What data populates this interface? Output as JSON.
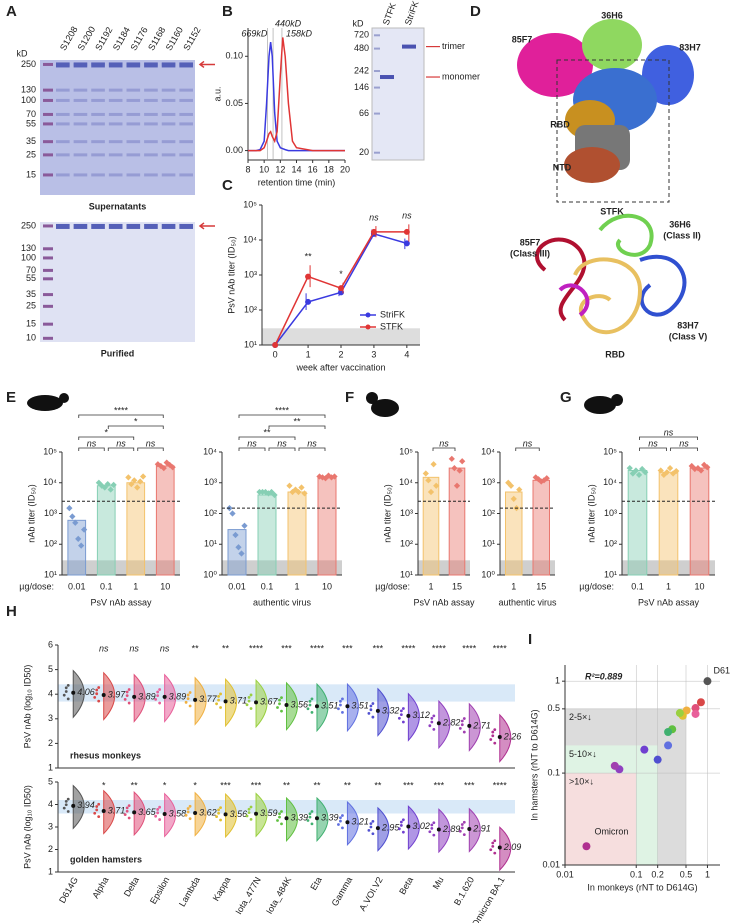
{
  "panel_labels": [
    "A",
    "B",
    "C",
    "D",
    "E",
    "F",
    "G",
    "H",
    "I"
  ],
  "gel_A": {
    "unit": "kD",
    "lanes": [
      "S1208",
      "S1200",
      "S1192",
      "S1184",
      "S1176",
      "S1168",
      "S1160",
      "S1152"
    ],
    "lane_colors": [
      "#222",
      "#222",
      "#d63a3a",
      "#222",
      "#222",
      "#222",
      "#222",
      "#222"
    ],
    "top": {
      "markers": [
        250,
        130,
        100,
        70,
        55,
        35,
        25,
        15
      ],
      "caption": "Supernatants"
    },
    "bottom": {
      "markers": [
        250,
        130,
        100,
        70,
        55,
        35,
        25,
        15,
        10
      ],
      "caption": "Purified"
    }
  },
  "structure_D": {
    "cryo_em_labels": [
      "85F7",
      "36H6",
      "83H7",
      "RBD",
      "NTD",
      "STFK"
    ],
    "ribbon_labels": [
      "85F7",
      "(Class III)",
      "36H6",
      "(Class II)",
      "83H7",
      "(Class V)",
      "RBD"
    ]
  },
  "chart_data": [
    {
      "type": "line",
      "ylabel": "a.u.",
      "xlabel": "retention time (min)",
      "x": [
        8,
        9,
        9.5,
        10,
        10.3,
        10.6,
        10.8,
        11,
        11.3,
        11.6,
        12,
        12.3,
        12.6,
        13,
        13.5,
        14,
        16,
        18,
        20
      ],
      "xlim": [
        8,
        20
      ],
      "xticks": [
        8,
        10,
        12,
        14,
        16,
        18,
        20
      ],
      "ylim": [
        -0.01,
        0.13
      ],
      "yticks": [
        {
          "value": 0,
          "label": "0.00"
        },
        {
          "value": 0.05,
          "label": "0.05"
        },
        {
          "value": 0.1,
          "label": "0.10"
        }
      ],
      "series": [
        {
          "name": "StriFK",
          "color": "#3a3ae0",
          "values": [
            0,
            0,
            0.001,
            0.01,
            0.05,
            0.1,
            0.115,
            0.1,
            0.04,
            0.01,
            0.003,
            0.002,
            0.001,
            0,
            0,
            0,
            0,
            0,
            0
          ]
        },
        {
          "name": "STFK",
          "color": "#e03535",
          "values": [
            0,
            0,
            0,
            0.003,
            0.01,
            0.018,
            0.02,
            0.015,
            0.01,
            0.02,
            0.08,
            0.12,
            0.1,
            0.05,
            0.01,
            0.003,
            0,
            0,
            0
          ]
        }
      ],
      "markers": [
        {
          "label": "669kD",
          "x": 10.4
        },
        {
          "label": "440kD",
          "x": 11.1
        },
        {
          "label": "158kD",
          "x": 12.2
        }
      ],
      "inset_gel": {
        "unit": "kD",
        "markers": [
          720,
          480,
          242,
          146,
          66,
          20
        ],
        "annotations": [
          "trimer",
          "monomer"
        ]
      }
    },
    {
      "type": "line",
      "log_y": true,
      "ylabel": "PsV nAb titer (ID₅₀)",
      "xlabel": "week after vaccination",
      "x": [
        0,
        1,
        2,
        3,
        4
      ],
      "xlim": [
        -0.4,
        4.4
      ],
      "xticks": [
        0,
        1,
        2,
        3,
        4
      ],
      "ylim": [
        10,
        100000
      ],
      "yticks": [
        {
          "value": 10,
          "label": "10¹"
        },
        {
          "value": 100,
          "label": "10²"
        },
        {
          "value": 1000,
          "label": "10³"
        },
        {
          "value": 10000,
          "label": "10⁴"
        },
        {
          "value": 100000,
          "label": "10⁵"
        }
      ],
      "lod": 30,
      "series": [
        {
          "name": "StriFK",
          "color": "#3a3ae0",
          "values": [
            10,
            170,
            320,
            15000,
            8000
          ],
          "error_low": [
            10,
            100,
            250,
            11000,
            5500
          ],
          "error_high": [
            10,
            300,
            420,
            20000,
            11000
          ]
        },
        {
          "name": "STFK",
          "color": "#e03535",
          "values": [
            10,
            900,
            420,
            17000,
            17000
          ],
          "error_low": [
            10,
            450,
            300,
            12000,
            9000
          ],
          "error_high": [
            10,
            1900,
            600,
            25000,
            28000
          ]
        }
      ],
      "annotations": [
        null,
        "**",
        "*",
        "ns",
        "ns"
      ],
      "legend": "lower right"
    },
    {
      "type": "bar",
      "log_y": true,
      "ylabel": "nAb titer (ID₅₀)",
      "xlabel": "PsV nAb assay",
      "category_title": "µg/dose:",
      "categories": [
        "0.01",
        "0.1",
        "1",
        "10"
      ],
      "values": [
        600,
        8000,
        10000,
        35000
      ],
      "colors": [
        "#7a9bd1",
        "#86cfb4",
        "#f3c26b",
        "#e9776f"
      ],
      "points": [
        [
          1500,
          800,
          500,
          150,
          90,
          300
        ],
        [
          10000,
          8000,
          7000,
          9000,
          6000,
          8500
        ],
        [
          15000,
          9000,
          12000,
          7000,
          11000,
          16000
        ],
        [
          40000,
          35000,
          30000,
          45000,
          38000,
          32000
        ]
      ],
      "ylim": [
        10,
        100000
      ],
      "yticks": [
        {
          "value": 10,
          "label": "10¹"
        },
        {
          "value": 100,
          "label": "10²"
        },
        {
          "value": 1000,
          "label": "10³"
        },
        {
          "value": 10000,
          "label": "10⁴"
        },
        {
          "value": 100000,
          "label": "10⁵"
        }
      ],
      "lod": 30,
      "threshold": 2500,
      "brackets": [
        {
          "between": [
            "0.01",
            "0.1"
          ],
          "label": "ns"
        },
        {
          "between": [
            "0.1",
            "1"
          ],
          "label": "ns"
        },
        {
          "between": [
            "1",
            "10"
          ],
          "label": "ns"
        },
        {
          "between": [
            "0.01",
            "1"
          ],
          "label": "*"
        },
        {
          "between": [
            "0.1",
            "10"
          ],
          "label": "*"
        },
        {
          "between": [
            "0.01",
            "10"
          ],
          "label": "****"
        }
      ]
    },
    {
      "type": "bar",
      "log_y": true,
      "xlabel": "authentic virus",
      "categories": [
        "0.01",
        "0.1",
        "1",
        "10"
      ],
      "values": [
        30,
        400,
        500,
        1500
      ],
      "colors": [
        "#7a9bd1",
        "#86cfb4",
        "#f3c26b",
        "#e9776f"
      ],
      "points": [
        [
          150,
          100,
          20,
          8,
          5,
          40
        ],
        [
          500,
          500,
          500,
          450,
          500,
          400
        ],
        [
          800,
          500,
          600,
          500,
          700,
          450
        ],
        [
          1600,
          1500,
          1400,
          1700,
          1500,
          1600
        ]
      ],
      "ylim": [
        1,
        10000
      ],
      "yticks": [
        {
          "value": 1,
          "label": "10⁰"
        },
        {
          "value": 10,
          "label": "10¹"
        },
        {
          "value": 100,
          "label": "10²"
        },
        {
          "value": 1000,
          "label": "10³"
        },
        {
          "value": 10000,
          "label": "10⁴"
        }
      ],
      "lod": 3,
      "threshold": 150,
      "brackets": [
        {
          "between": [
            "0.01",
            "0.1"
          ],
          "label": "ns"
        },
        {
          "between": [
            "0.1",
            "1"
          ],
          "label": "ns"
        },
        {
          "between": [
            "1",
            "10"
          ],
          "label": "ns"
        },
        {
          "between": [
            "0.01",
            "1"
          ],
          "label": "**"
        },
        {
          "between": [
            "0.1",
            "10"
          ],
          "label": "**"
        },
        {
          "between": [
            "0.01",
            "10"
          ],
          "label": "****"
        }
      ]
    },
    {
      "type": "bar",
      "log_y": true,
      "ylabel": "nAb titer (ID₅₀)",
      "xlabel": "PsV nAb assay",
      "category_title": "µg/dose:",
      "categories": [
        "1",
        "15"
      ],
      "values": [
        15000,
        30000
      ],
      "colors": [
        "#f3c26b",
        "#e9776f"
      ],
      "points": [
        [
          20000,
          12000,
          5000,
          40000,
          8000
        ],
        [
          60000,
          30000,
          8000,
          25000,
          50000
        ]
      ],
      "ylim": [
        10,
        100000
      ],
      "yticks": [
        {
          "value": 10,
          "label": "10¹"
        },
        {
          "value": 100,
          "label": "10²"
        },
        {
          "value": 1000,
          "label": "10³"
        },
        {
          "value": 10000,
          "label": "10⁴"
        },
        {
          "value": 100000,
          "label": "10⁵"
        }
      ],
      "lod": 30,
      "threshold": 2500,
      "brackets": [
        {
          "between": [
            "1",
            "15"
          ],
          "label": "ns"
        }
      ]
    },
    {
      "type": "bar",
      "log_y": true,
      "xlabel": "authentic virus",
      "categories": [
        "1",
        "15"
      ],
      "values": [
        500,
        1200
      ],
      "colors": [
        "#f3c26b",
        "#e9776f"
      ],
      "points": [
        [
          1000,
          800,
          300,
          150,
          600
        ],
        [
          1500,
          1300,
          1100,
          1200,
          1400
        ]
      ],
      "ylim": [
        1,
        10000
      ],
      "yticks": [
        {
          "value": 1,
          "label": "10⁰"
        },
        {
          "value": 10,
          "label": "10¹"
        },
        {
          "value": 100,
          "label": "10²"
        },
        {
          "value": 1000,
          "label": "10³"
        },
        {
          "value": 10000,
          "label": "10⁴"
        }
      ],
      "lod": 3,
      "threshold": 150,
      "brackets": [
        {
          "between": [
            "1",
            "15"
          ],
          "label": "ns"
        }
      ]
    },
    {
      "type": "bar",
      "log_y": true,
      "ylabel": "nAb titer (ID₅₀)",
      "xlabel": "PsV nAb assay",
      "category_title": "µg/dose:",
      "categories": [
        "0.1",
        "1",
        "10"
      ],
      "values": [
        25000,
        22000,
        30000
      ],
      "colors": [
        "#86cfb4",
        "#f3c26b",
        "#e9776f"
      ],
      "points": [
        [
          30000,
          20000,
          25000,
          18000,
          28000,
          22000
        ],
        [
          25000,
          18000,
          22000,
          30000,
          20000,
          24000
        ],
        [
          35000,
          28000,
          30000,
          25000,
          38000,
          32000
        ]
      ],
      "ylim": [
        10,
        100000
      ],
      "yticks": [
        {
          "value": 10,
          "label": "10¹"
        },
        {
          "value": 100,
          "label": "10²"
        },
        {
          "value": 1000,
          "label": "10³"
        },
        {
          "value": 10000,
          "label": "10⁴"
        },
        {
          "value": 100000,
          "label": "10⁵"
        }
      ],
      "lod": 30,
      "threshold": 2500,
      "brackets": [
        {
          "between": [
            "0.1",
            "1"
          ],
          "label": "ns"
        },
        {
          "between": [
            "1",
            "10"
          ],
          "label": "ns"
        },
        {
          "between": [
            "0.1",
            "10"
          ],
          "label": "ns"
        }
      ]
    },
    {
      "type": "violin",
      "ylabel": "PsV nAb (log₁₀ ID50)",
      "label": "rhesus monkeys",
      "values": [
        4.06,
        3.97,
        3.89,
        3.89,
        3.77,
        3.71,
        3.67,
        3.56,
        3.51,
        3.51,
        3.32,
        3.12,
        2.82,
        2.71,
        2.26
      ],
      "significance": [
        null,
        "ns",
        "ns",
        "ns",
        "**",
        "**",
        "****",
        "***",
        "****",
        "***",
        "***",
        "****",
        "****",
        "****",
        "****"
      ],
      "colors": [
        "#555555",
        "#d94848",
        "#e0507a",
        "#e8609a",
        "#f0b040",
        "#e0c030",
        "#9ad040",
        "#60c040",
        "#40b070",
        "#6070e0",
        "#5050d0",
        "#7040d0",
        "#9040c0",
        "#a040b0",
        "#b03090"
      ],
      "ylim": [
        1,
        6
      ],
      "yticks": [
        1,
        2,
        3,
        4,
        5,
        6
      ],
      "band": [
        3.7,
        4.4
      ]
    },
    {
      "type": "violin",
      "ylabel": "PsV nAb (log₁₀ ID50)",
      "label": "golden hamsters",
      "categories": [
        "D614G",
        "Alpha",
        "Delta",
        "Epsilon",
        "Lambda",
        "Kappa",
        "Iota_477N",
        "Iota_484K",
        "Eta",
        "Gamma",
        "A.VOI.V2",
        "Beta",
        "Mu",
        "B.1.620",
        "Omicron BA.1"
      ],
      "values": [
        3.94,
        3.71,
        3.65,
        3.58,
        3.62,
        3.56,
        3.59,
        3.39,
        3.39,
        3.21,
        2.95,
        3.02,
        2.89,
        2.91,
        2.09
      ],
      "significance": [
        null,
        "*",
        "**",
        "*",
        "*",
        "***",
        "***",
        "**",
        "**",
        "**",
        "**",
        "***",
        "***",
        "***",
        "****"
      ],
      "colors": [
        "#555555",
        "#d94848",
        "#e0507a",
        "#e8609a",
        "#f0b040",
        "#e0c030",
        "#9ad040",
        "#60c040",
        "#40b070",
        "#6070e0",
        "#5050d0",
        "#7040d0",
        "#9040c0",
        "#a040b0",
        "#b03090"
      ],
      "ylim": [
        1,
        5
      ],
      "yticks": [
        1,
        2,
        3,
        4,
        5
      ],
      "band": [
        3.6,
        4.2
      ]
    },
    {
      "type": "scatter",
      "log_x": true,
      "log_y": true,
      "xlabel": "In monkeys (rNT to D614G)",
      "ylabel": "In hamsters (rNT to D614G)",
      "x": [
        1,
        0.81,
        0.68,
        0.68,
        0.51,
        0.45,
        0.41,
        0.32,
        0.28,
        0.28,
        0.2,
        0.13,
        0.058,
        0.05,
        0.02
      ],
      "values": [
        1,
        0.59,
        0.51,
        0.44,
        0.48,
        0.42,
        0.45,
        0.3,
        0.28,
        0.2,
        0.14,
        0.18,
        0.11,
        0.12,
        0.016
      ],
      "colors": [
        "#555555",
        "#d94848",
        "#e0507a",
        "#e8609a",
        "#f0b040",
        "#e0c030",
        "#9ad040",
        "#60c040",
        "#40b070",
        "#6070e0",
        "#5050d0",
        "#7040d0",
        "#9040c0",
        "#a040b0",
        "#b03090"
      ],
      "point_labels": [
        "D614G",
        null,
        null,
        null,
        null,
        null,
        null,
        null,
        null,
        null,
        null,
        null,
        null,
        null,
        "Omicron"
      ],
      "xlim": [
        0.01,
        1.5
      ],
      "ylim": [
        0.01,
        1.5
      ],
      "xticks": [
        0.01,
        0.1,
        0.2,
        0.5,
        1
      ],
      "yticks": [
        0.01,
        0.1,
        0.5,
        1
      ],
      "regions": [
        {
          "label": "2-5×↓",
          "x_max": 0.5,
          "y_max": 0.5,
          "color": "#dcdcdc"
        },
        {
          "label": "5-10×↓",
          "x_max": 0.2,
          "y_max": 0.2,
          "color": "#dff3e4"
        },
        {
          "label": ">10×↓",
          "x_max": 0.1,
          "y_max": 0.1,
          "color": "#f6dede"
        }
      ],
      "annotation": "R²=0.889"
    }
  ]
}
